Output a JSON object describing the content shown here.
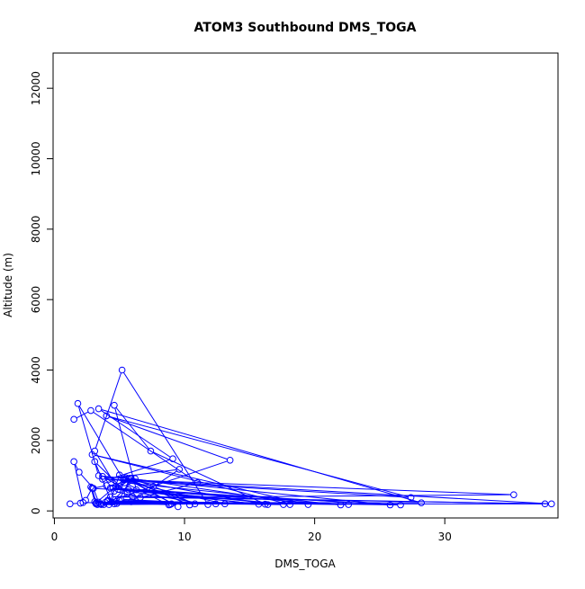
{
  "chart_data": {
    "type": "line",
    "title": "ATOM3 Southbound DMS_TOGA",
    "xlabel": "DMS_TOGA",
    "ylabel": "Altitude (m)",
    "xlim": [
      -0.1,
      38.7
    ],
    "ylim": [
      -200,
      13000
    ],
    "x_ticks": [
      0,
      10,
      20,
      30
    ],
    "y_ticks": [
      0,
      2000,
      4000,
      6000,
      8000,
      10000,
      12000
    ],
    "grid": false,
    "marker": "open-circle",
    "line_color": "#0000ff",
    "series": [
      {
        "points": [
          [
            1.2,
            200
          ],
          [
            2.0,
            220
          ],
          [
            2.4,
            300
          ],
          [
            2.9,
            650
          ],
          [
            3.2,
            200
          ],
          [
            3.6,
            180
          ],
          [
            9.0,
            200
          ],
          [
            3.1,
            260
          ],
          [
            2.8,
            680
          ],
          [
            3.3,
            180
          ],
          [
            4.1,
            300
          ],
          [
            8.9,
            180
          ],
          [
            2.2,
            240
          ],
          [
            1.5,
            1400
          ],
          [
            1.9,
            1100
          ],
          [
            3.0,
            640
          ],
          [
            3.4,
            250
          ],
          [
            4.6,
            200
          ],
          [
            3.8,
            180
          ],
          [
            12.4,
            200
          ],
          [
            5.1,
            330
          ],
          [
            3.6,
            190
          ],
          [
            13.1,
            200
          ],
          [
            3.7,
            980
          ],
          [
            5.0,
            700
          ],
          [
            4.0,
            720
          ],
          [
            2.9,
            640
          ],
          [
            26.6,
            170
          ],
          [
            4.1,
            280
          ],
          [
            22.6,
            180
          ],
          [
            4.4,
            250
          ],
          [
            3.1,
            1400
          ],
          [
            5.6,
            500
          ],
          [
            6.6,
            380
          ],
          [
            4.6,
            560
          ],
          [
            5.9,
            930
          ],
          [
            4.8,
            210
          ],
          [
            3.5,
            200
          ],
          [
            37.7,
            200
          ],
          [
            6.0,
            410
          ],
          [
            4.3,
            400
          ],
          [
            38.2,
            200
          ],
          [
            5.3,
            890
          ],
          [
            1.8,
            3050
          ],
          [
            3.4,
            1000
          ],
          [
            25.8,
            170
          ],
          [
            4.5,
            650
          ],
          [
            6.2,
            920
          ],
          [
            4.2,
            180
          ],
          [
            4.7,
            700
          ],
          [
            5.0,
            1020
          ],
          [
            9.5,
            120
          ],
          [
            5.7,
            900
          ],
          [
            10.4,
            170
          ],
          [
            5.5,
            940
          ],
          [
            3.2,
            230
          ],
          [
            17.6,
            180
          ],
          [
            4.3,
            650
          ],
          [
            11.8,
            180
          ],
          [
            5.2,
            4000
          ],
          [
            3.1,
            1700
          ],
          [
            4.9,
            610
          ],
          [
            15.7,
            190
          ],
          [
            5.7,
            600
          ],
          [
            18.1,
            180
          ],
          [
            2.9,
            1600
          ],
          [
            19.5,
            180
          ],
          [
            5.8,
            930
          ],
          [
            7.6,
            700
          ],
          [
            10.8,
            200
          ],
          [
            5.4,
            900
          ],
          [
            16.4,
            180
          ],
          [
            5.0,
            300
          ],
          [
            8.8,
            170
          ],
          [
            5.4,
            800
          ],
          [
            22.0,
            170
          ],
          [
            6.3,
            600
          ],
          [
            4.6,
            3000
          ],
          [
            7.4,
            1700
          ],
          [
            16.2,
            190
          ],
          [
            5.9,
            260
          ],
          [
            9.6,
            1180
          ],
          [
            3.7,
            900
          ],
          [
            27.4,
            380
          ],
          [
            4.0,
            2700
          ],
          [
            13.5,
            1440
          ],
          [
            3.9,
            240
          ],
          [
            28.2,
            230
          ],
          [
            3.4,
            2900
          ],
          [
            9.1,
            1480
          ],
          [
            4.2,
            900
          ],
          [
            35.3,
            460
          ],
          [
            6.6,
            380
          ],
          [
            11.0,
            800
          ],
          [
            2.8,
            2850
          ],
          [
            1.5,
            2600
          ]
        ]
      }
    ]
  }
}
